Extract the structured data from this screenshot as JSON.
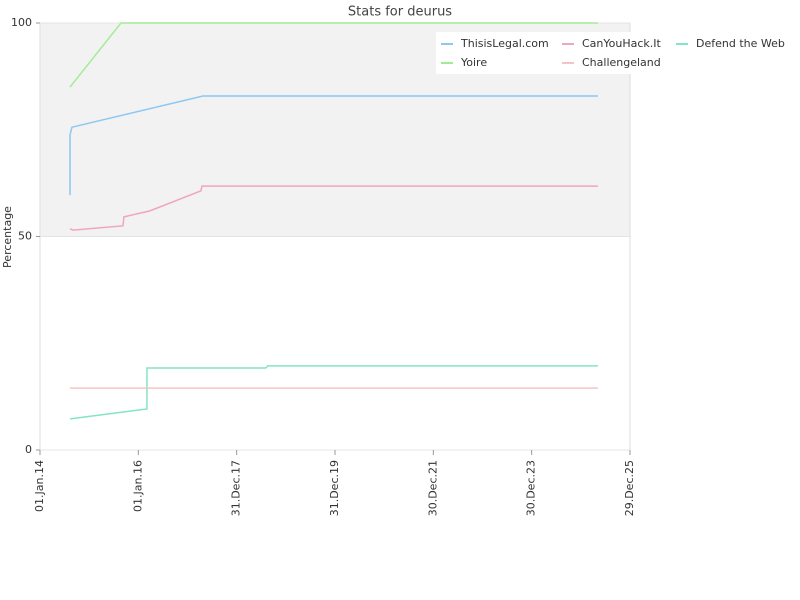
{
  "chart_data": {
    "type": "line",
    "title": "Stats for deurus",
    "y_label": "Percentage",
    "xlim": [
      "2014-01-01",
      "2025-12-29"
    ],
    "xticks": [
      {
        "value": "2014-01-01",
        "label": "01.Jan.14"
      },
      {
        "value": "2016-01-01",
        "label": "01.Jan.16"
      },
      {
        "value": "2017-12-31",
        "label": "31.Dec.17"
      },
      {
        "value": "2019-12-31",
        "label": "31.Dec.19"
      },
      {
        "value": "2021-12-30",
        "label": "30.Dec.21"
      },
      {
        "value": "2023-12-30",
        "label": "30.Dec.23"
      },
      {
        "value": "2025-12-29",
        "label": "29.Dec.25"
      }
    ],
    "ylim": [
      0,
      100
    ],
    "yticks": [
      0,
      50,
      100
    ],
    "grid": true,
    "alternate_grid_band": true,
    "legend": "top-right",
    "series": [
      {
        "name": "ThisisLegal.com",
        "color": "#8cc8f0",
        "x": [
          "2014-08-12",
          "2014-08-12",
          "2014-08-26",
          "2017-04-25",
          "2025-05-05"
        ],
        "values": [
          59.7,
          73.8,
          75.6,
          82.9,
          82.9
        ]
      },
      {
        "name": "CanYouHack.It",
        "color": "#f0a4c4",
        "x": [
          "2014-08-12",
          "2014-09-03",
          "2015-09-09",
          "2015-09-16",
          "2016-03-27",
          "2017-04-10",
          "2017-04-17",
          "2025-05-05"
        ],
        "values": [
          51.8,
          51.5,
          52.5,
          54.6,
          56.0,
          60.7,
          61.8,
          61.8
        ]
      },
      {
        "name": "Defend the Web",
        "color": "#84e4c4",
        "x": [
          "2014-08-12",
          "2016-03-05",
          "2016-03-05",
          "2018-08-04",
          "2018-08-19",
          "2025-05-05"
        ],
        "values": [
          7.3,
          9.6,
          19.2,
          19.2,
          19.7,
          19.7
        ]
      },
      {
        "name": "Yoire",
        "color": "#a4ec94",
        "x": [
          "2014-08-12",
          "2015-08-25",
          "2025-05-05"
        ],
        "values": [
          85.0,
          100,
          100
        ]
      },
      {
        "name": "Challengeland",
        "color": "#f4c4c4",
        "x": [
          "2014-08-12",
          "2025-05-05"
        ],
        "values": [
          14.5,
          14.5
        ]
      }
    ]
  }
}
